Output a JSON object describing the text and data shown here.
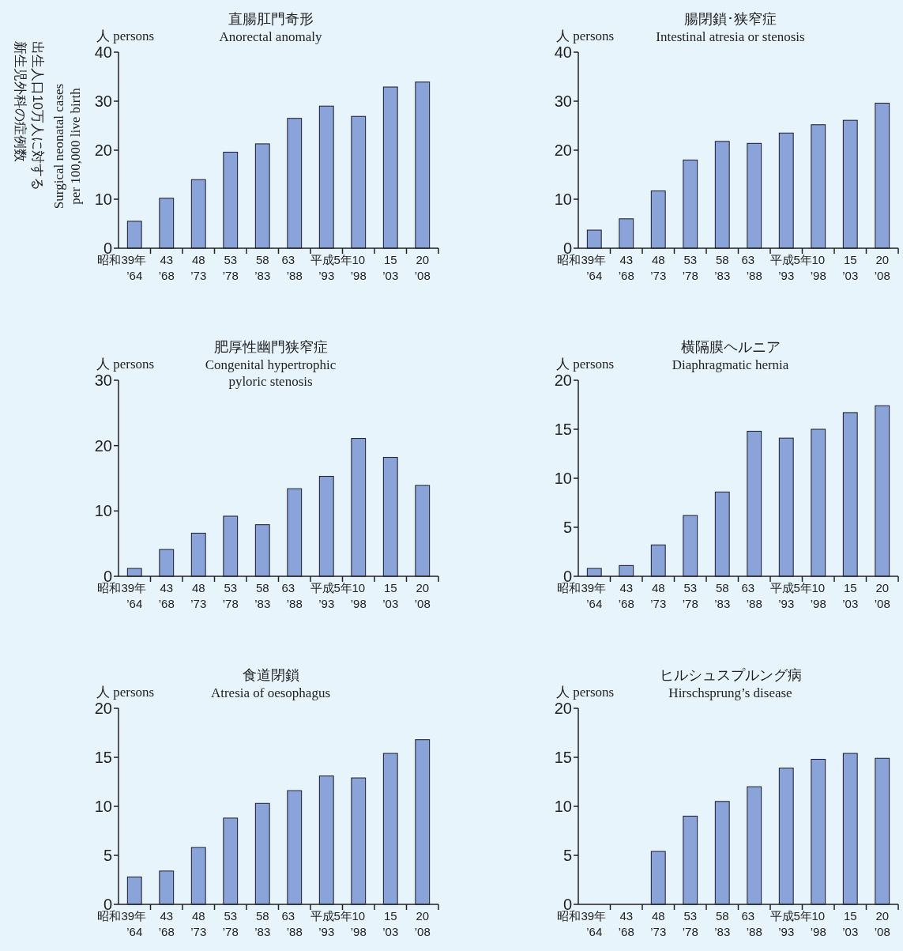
{
  "chart_data": [
    {
      "type": "bar",
      "title": "直腸肛門奇形",
      "subtitle": "Anorectal anomaly",
      "ylabel": "人 persons",
      "categories": [
        "昭和39年\n’64",
        "43\n’68",
        "48\n’73",
        "53\n’78",
        "58\n’83",
        "63\n’88",
        "平成5年\n’93",
        "10\n’98",
        "15\n’03",
        "20\n’08"
      ],
      "values": [
        5.5,
        10.2,
        14,
        19.6,
        21.3,
        26.5,
        29,
        26.9,
        32.9,
        33.9
      ],
      "color": "#8aa3d8",
      "ylim": [
        0,
        40
      ],
      "yticks": [
        0,
        10,
        20,
        30,
        40
      ],
      "annotations": [
        "出生人口10万人に対する",
        "新生児外科の症例数",
        "Surgical neonatal cases\nper 100,000 live birth"
      ]
    },
    {
      "type": "bar",
      "title": "腸閉鎖･狭窄症",
      "subtitle": "Intestinal atresia or stenosis",
      "ylabel": "人 persons",
      "categories": [
        "昭和39年\n’64",
        "43\n’68",
        "48\n’73",
        "53\n’78",
        "58\n’83",
        "63\n’88",
        "平成5年\n’93",
        "10\n’98",
        "15\n’03",
        "20\n’08"
      ],
      "values": [
        3.7,
        6,
        11.7,
        18,
        21.8,
        21.4,
        23.5,
        25.2,
        26.1,
        29.6
      ],
      "color": "#8aa3d8",
      "ylim": [
        0,
        40
      ],
      "yticks": [
        0,
        10,
        20,
        30,
        40
      ]
    },
    {
      "type": "bar",
      "title": "肥厚性幽門狭窄症",
      "subtitle": "Congenital hypertrophic\npyloric stenosis",
      "ylabel": "人 persons",
      "categories": [
        "昭和39年\n’64",
        "43\n’68",
        "48\n’73",
        "53\n’78",
        "58\n’83",
        "63\n’88",
        "平成5年\n’93",
        "10\n’98",
        "15\n’03",
        "20\n’08"
      ],
      "values": [
        1.2,
        4.1,
        6.6,
        9.2,
        7.9,
        13.4,
        15.3,
        21.1,
        18.2,
        13.9
      ],
      "color": "#8aa3d8",
      "ylim": [
        0,
        30
      ],
      "yticks": [
        0,
        10,
        20,
        30
      ]
    },
    {
      "type": "bar",
      "title": "横隔膜ヘルニア",
      "subtitle": "Diaphragmatic hernia",
      "ylabel": "人 persons",
      "categories": [
        "昭和39年\n’64",
        "43\n’68",
        "48\n’73",
        "53\n’78",
        "58\n’83",
        "63\n’88",
        "平成5年\n’93",
        "10\n’98",
        "15\n’03",
        "20\n’08"
      ],
      "values": [
        0.8,
        1.1,
        3.2,
        6.2,
        8.6,
        14.8,
        14.1,
        15,
        16.7,
        17.4
      ],
      "color": "#8aa3d8",
      "ylim": [
        0,
        20
      ],
      "yticks": [
        0,
        5,
        10,
        15,
        20
      ]
    },
    {
      "type": "bar",
      "title": "食道閉鎖",
      "subtitle": "Atresia of oesophagus",
      "ylabel": "人 persons",
      "categories": [
        "昭和39年\n’64",
        "43\n’68",
        "48\n’73",
        "53\n’78",
        "58\n’83",
        "63\n’88",
        "平成5年\n’93",
        "10\n’98",
        "15\n’03",
        "20\n’08"
      ],
      "values": [
        2.8,
        3.4,
        5.8,
        8.8,
        10.3,
        11.6,
        13.1,
        12.9,
        15.4,
        16.8
      ],
      "color": "#8aa3d8",
      "ylim": [
        0,
        20
      ],
      "yticks": [
        0,
        5,
        10,
        15,
        20
      ]
    },
    {
      "type": "bar",
      "title": "ヒルシュスプルング病",
      "subtitle": "Hirschsprung’s disease",
      "ylabel": "人 persons",
      "categories": [
        "昭和39年\n’64",
        "43\n’68",
        "48\n’73",
        "53\n’78",
        "58\n’83",
        "63\n’88",
        "平成5年\n’93",
        "10\n’98",
        "15\n’03",
        "20\n’08"
      ],
      "values": [
        null,
        null,
        5.4,
        9,
        10.5,
        12,
        13.9,
        14.8,
        15.4,
        14.9
      ],
      "color": "#8aa3d8",
      "ylim": [
        0,
        20
      ],
      "yticks": [
        0,
        5,
        10,
        15,
        20
      ]
    }
  ]
}
